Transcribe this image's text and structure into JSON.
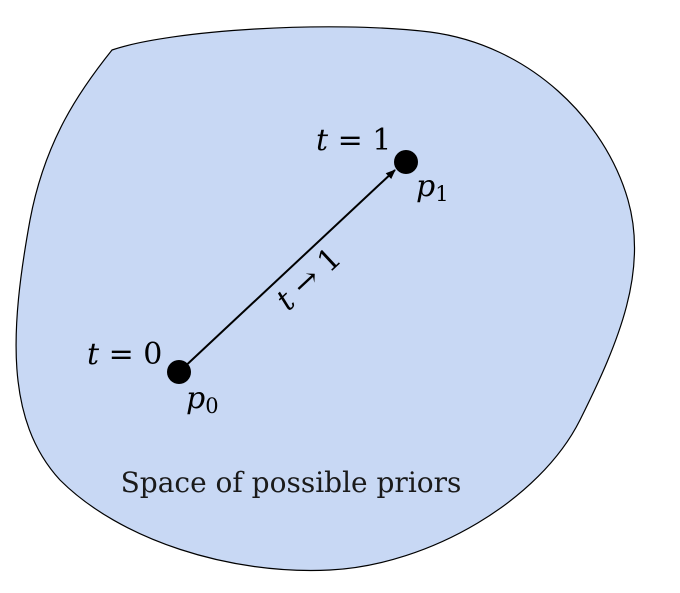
{
  "region": {
    "label": "Space of possible priors",
    "fill_color": "#c8d8f4",
    "stroke_color": "#000000"
  },
  "points": [
    {
      "name": "p0",
      "symbol": "p",
      "subscript": "0",
      "t_label_var": "t",
      "t_label_rest": " = 0"
    },
    {
      "name": "p1",
      "symbol": "p",
      "subscript": "1",
      "t_label_var": "t",
      "t_label_rest": " = 1"
    }
  ],
  "path": {
    "label_var": "t",
    "label_rest": " → 1"
  },
  "colors": {
    "point": "#000000",
    "arrow": "#000000"
  }
}
